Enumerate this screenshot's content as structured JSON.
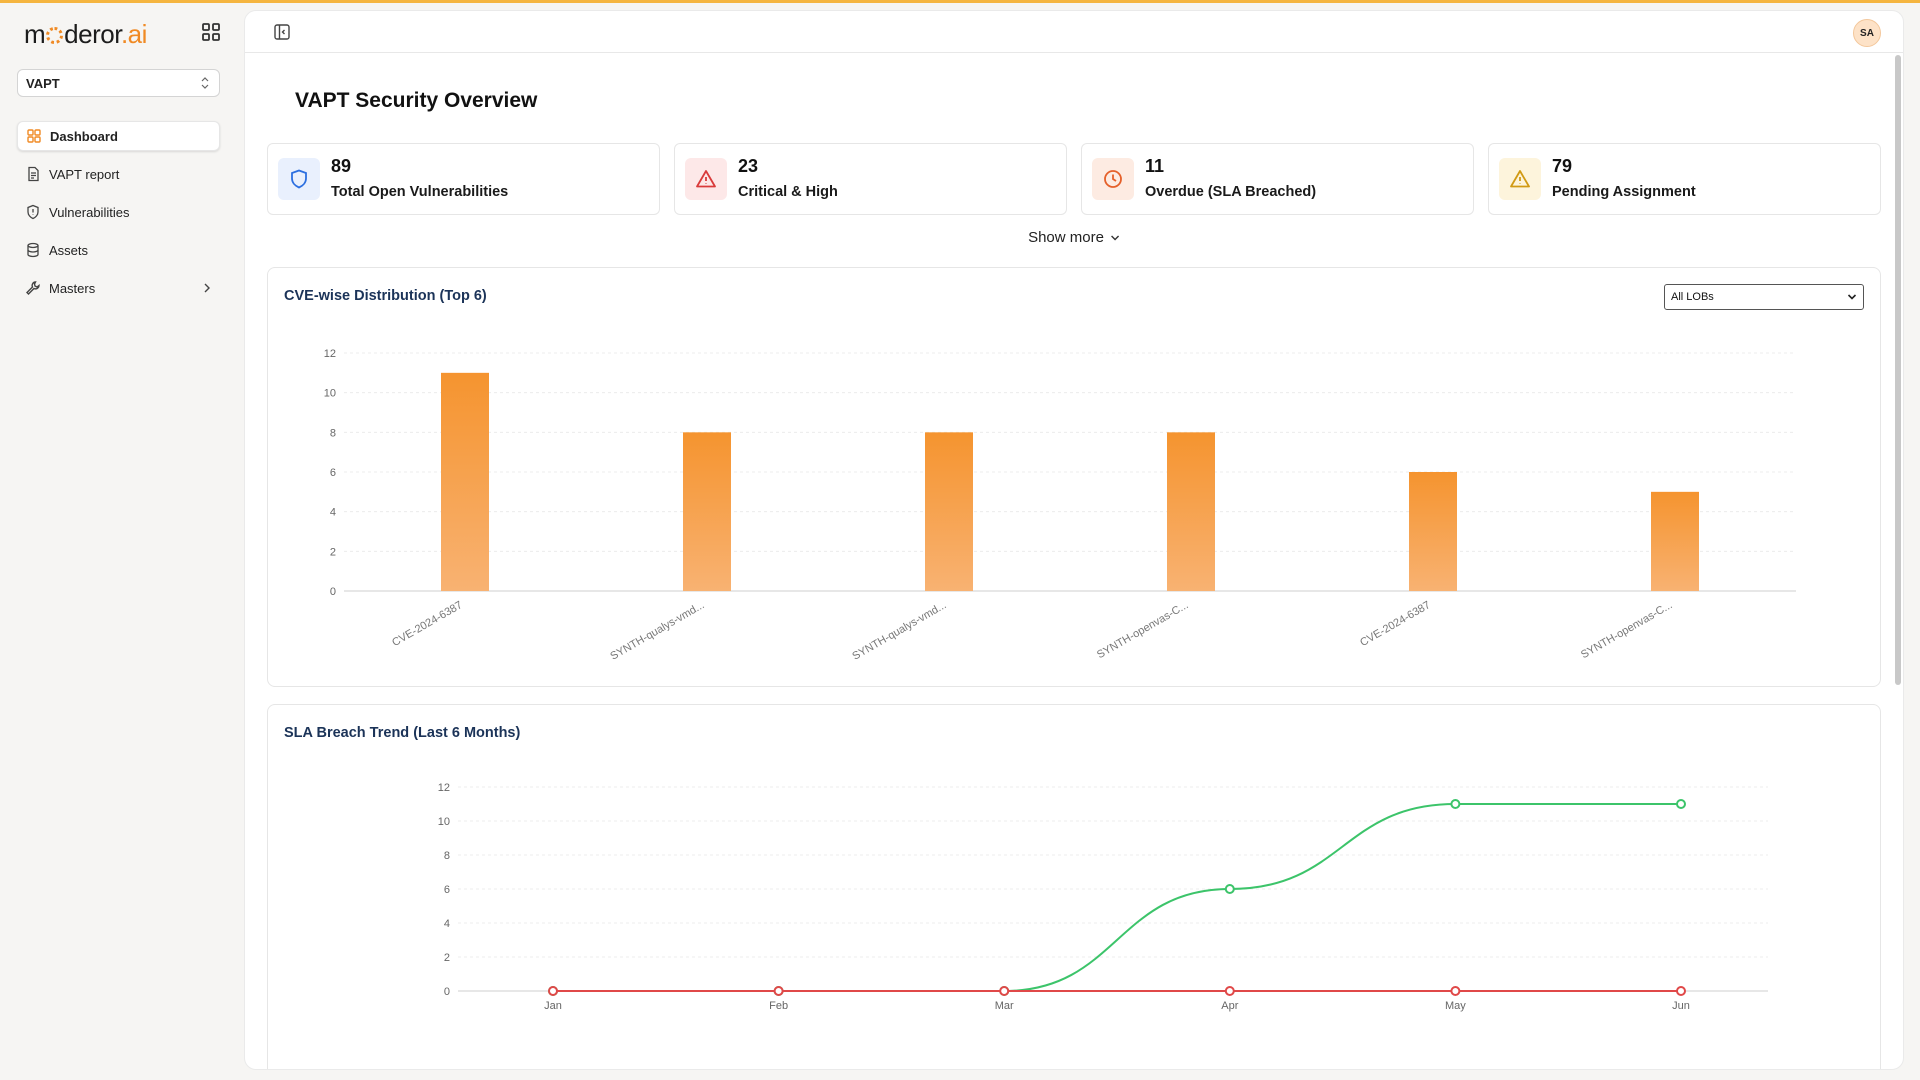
{
  "brand": {
    "prefix": "m",
    "middle": "deror",
    "suffix": "ai"
  },
  "module_select": {
    "value": "VAPT"
  },
  "nav": [
    {
      "label": "Dashboard",
      "icon": "grid-icon",
      "active": true
    },
    {
      "label": "VAPT report",
      "icon": "document-icon"
    },
    {
      "label": "Vulnerabilities",
      "icon": "shield-icon"
    },
    {
      "label": "Assets",
      "icon": "database-icon"
    },
    {
      "label": "Masters",
      "icon": "wrench-icon",
      "has_children": true
    }
  ],
  "user": {
    "initials": "SA"
  },
  "page": {
    "title": "VAPT Security Overview"
  },
  "cards": [
    {
      "value": "89",
      "label": "Total Open Vulnerabilities",
      "icon": "shield-icon",
      "color": "#2c6fe0",
      "bg": "#e9f0fd"
    },
    {
      "value": "23",
      "label": "Critical & High",
      "icon": "alert-triangle-icon",
      "color": "#d93b3b",
      "bg": "#fde8e8"
    },
    {
      "value": "11",
      "label": "Overdue (SLA Breached)",
      "icon": "clock-icon",
      "color": "#e5602a",
      "bg": "#fdebe2"
    },
    {
      "value": "79",
      "label": "Pending Assignment",
      "icon": "warning-icon",
      "color": "#d19a14",
      "bg": "#fdf4dc"
    }
  ],
  "show_more": "Show more",
  "cve_panel": {
    "title": "CVE-wise Distribution (Top 6)",
    "filter_value": "All LOBs"
  },
  "sla_panel": {
    "title": "SLA Breach Trend (Last 6 Months)"
  },
  "chart_data": [
    {
      "type": "bar",
      "title": "CVE-wise Distribution (Top 6)",
      "categories": [
        "CVE-2024-6387",
        "SYNTH-qualys-vmd...",
        "SYNTH-qualys-vmd...",
        "SYNTH-openvas-C...",
        "CVE-2024-6387",
        "SYNTH-openvas-C..."
      ],
      "values": [
        11,
        8,
        8,
        8,
        6,
        5
      ],
      "ylim": [
        0,
        12
      ],
      "yticks": [
        0,
        2,
        4,
        6,
        8,
        10,
        12
      ],
      "color": "#f5963a",
      "grid": true
    },
    {
      "type": "line",
      "title": "SLA Breach Trend (Last 6 Months)",
      "x": [
        "Jan",
        "Feb",
        "Mar",
        "Apr",
        "May",
        "Jun"
      ],
      "series": [
        {
          "values": [
            0,
            0,
            0,
            6,
            11,
            11
          ],
          "color": "#3cc46a"
        },
        {
          "values": [
            0,
            0,
            0,
            0,
            0,
            0
          ],
          "color": "#e04848"
        }
      ],
      "ylim": [
        0,
        12
      ],
      "yticks": [
        0,
        2,
        4,
        6,
        8,
        10,
        12
      ],
      "grid": true
    }
  ]
}
